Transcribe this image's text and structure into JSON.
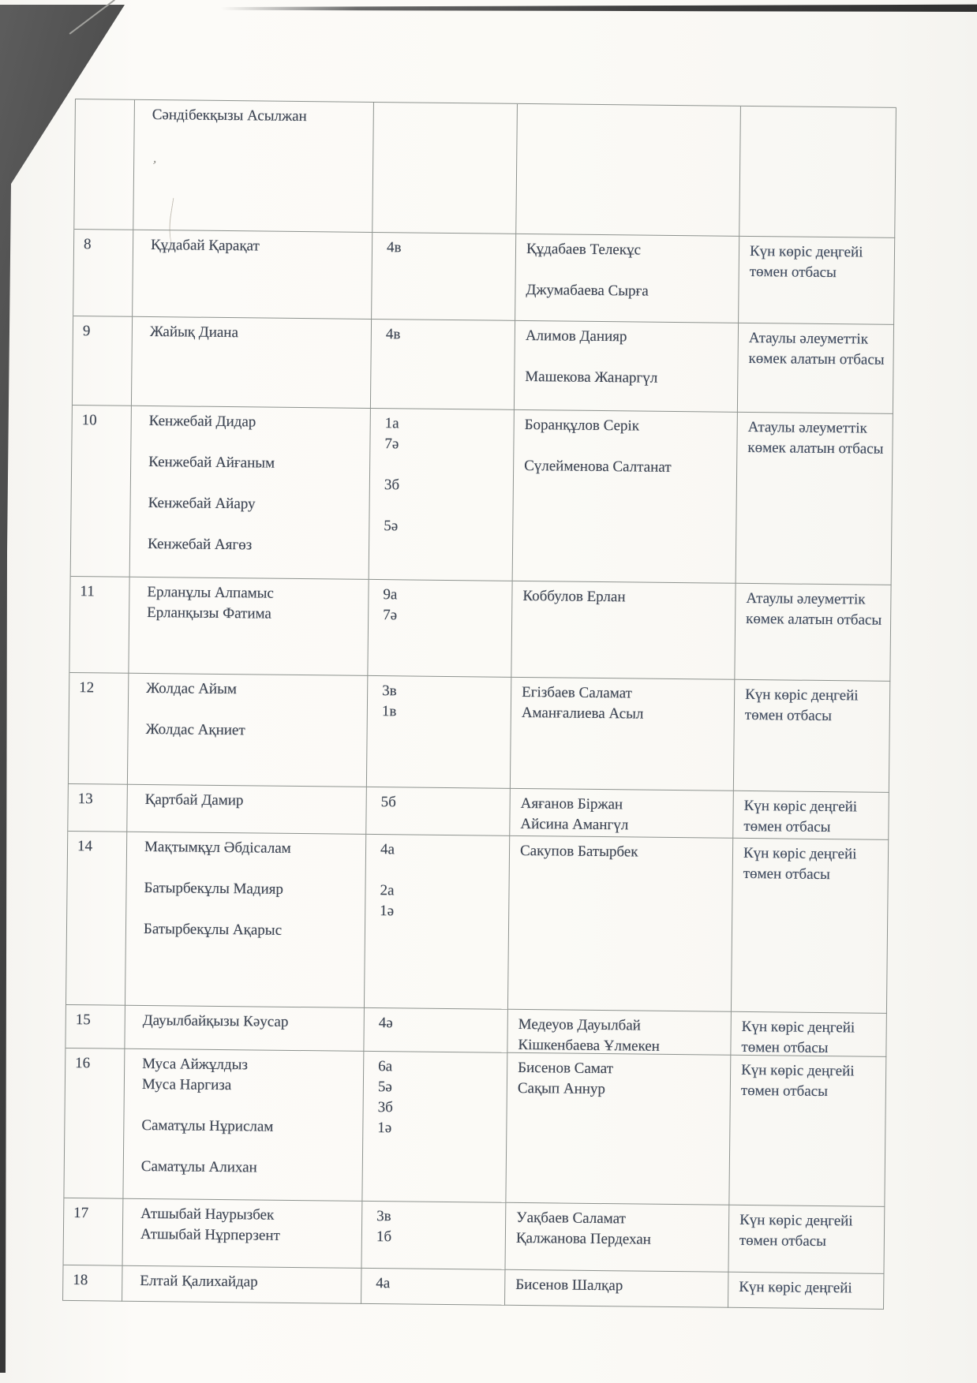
{
  "document": {
    "kind": "scanned table page (continuation, no headers visible)",
    "language": "Kazakh",
    "ink_color": "#3e4654",
    "border_color": "#8d928e",
    "status_values": {
      "low_income": "Күн көріс деңгейі төмен отбасы",
      "targeted_aid": "Атаулы әлеуметтік көмек алатын отбасы"
    }
  },
  "table": {
    "rows": [
      {
        "no": "",
        "students": [
          "Сәндібекқызы Асылжан"
        ],
        "classes": [],
        "parents": [],
        "status": ""
      },
      {
        "no": "8",
        "students": [
          "Құдабай Қарақат"
        ],
        "classes": [
          "4в"
        ],
        "parents": [
          "Құдабаев Телекұс",
          "",
          "Джумабаева Сырға"
        ],
        "status": "Күн көріс деңгейі төмен отбасы"
      },
      {
        "no": "9",
        "students": [
          "Жайық Диана"
        ],
        "classes": [
          "4в"
        ],
        "parents": [
          "Алимов Данияр",
          "",
          "Машекова Жанаргүл"
        ],
        "status": "Атаулы әлеуметтік көмек алатын отбасы"
      },
      {
        "no": "10",
        "students": [
          "Кенжебай Дидар",
          "",
          "Кенжебай Айғаным",
          "",
          "Кенжебай Айару",
          "",
          "Кенжебай Аягөз"
        ],
        "classes": [
          "1а",
          "7ә",
          "",
          "3б",
          "",
          "5ә"
        ],
        "parents": [
          "Боранқұлов Серік",
          "",
          "Сүлейменова Салтанат"
        ],
        "status": "Атаулы әлеуметтік көмек алатын отбасы"
      },
      {
        "no": "11",
        "students": [
          "Ерланұлы Алпамыс",
          "Ерланқызы Фатима"
        ],
        "classes": [
          "9а",
          "7ә"
        ],
        "parents": [
          "Коббулов Ерлан"
        ],
        "status": "Атаулы әлеуметтік көмек алатын отбасы"
      },
      {
        "no": "12",
        "students": [
          "Жолдас Айым",
          "",
          "Жолдас Ақниет"
        ],
        "classes": [
          "3в",
          "1в"
        ],
        "parents": [
          "Егізбаев Саламат",
          "Аманғалиева Асыл"
        ],
        "status": "Күн көріс деңгейі төмен отбасы"
      },
      {
        "no": "13",
        "students": [
          "Қартбай Дамир"
        ],
        "classes": [
          "5б"
        ],
        "parents": [
          "Аяғанов Біржан",
          "Айсина Амангүл"
        ],
        "status": "Күн көріс деңгейі төмен отбасы"
      },
      {
        "no": "14",
        "students": [
          "Мақтымқұл Әбдісалам",
          "",
          "Батырбекұлы Мадияр",
          "",
          "Батырбекұлы Ақарыс"
        ],
        "classes": [
          "4а",
          "",
          "2а",
          "1ә"
        ],
        "parents": [
          "Сакупов Батырбек"
        ],
        "status": "Күн көріс деңгейі төмен отбасы"
      },
      {
        "no": "15",
        "students": [
          "Дауылбайқызы Кәусар"
        ],
        "classes": [
          "4ә"
        ],
        "parents": [
          "Медеуов Дауылбай",
          "Кішкенбаева Ұлмекен"
        ],
        "status": "Күн көріс деңгейі төмен отбасы"
      },
      {
        "no": "16",
        "students": [
          "Муса Айжұлдыз",
          "Муса Наргиза",
          "",
          "Саматұлы Нұрислам",
          "",
          "Саматұлы Алихан"
        ],
        "classes": [
          "6а",
          "5ә",
          "3б",
          "1ә"
        ],
        "parents": [
          "Бисенов Самат",
          "Сақып Аннур"
        ],
        "status": "Күн көріс деңгейі төмен отбасы"
      },
      {
        "no": "17",
        "students": [
          "Атшыбай Наурызбек",
          "Атшыбай Нұрперзент"
        ],
        "classes": [
          "3в",
          "1б"
        ],
        "parents": [
          "Уақбаев Саламат",
          "Қалжанова Пердехан"
        ],
        "status": "Күн көріс деңгейі төмен отбасы"
      },
      {
        "no": "18",
        "students": [
          "Елтай Қалихайдар"
        ],
        "classes": [
          "4а"
        ],
        "parents": [
          "Бисенов Шалқар"
        ],
        "status": "Күн көріс деңгейі"
      }
    ]
  }
}
